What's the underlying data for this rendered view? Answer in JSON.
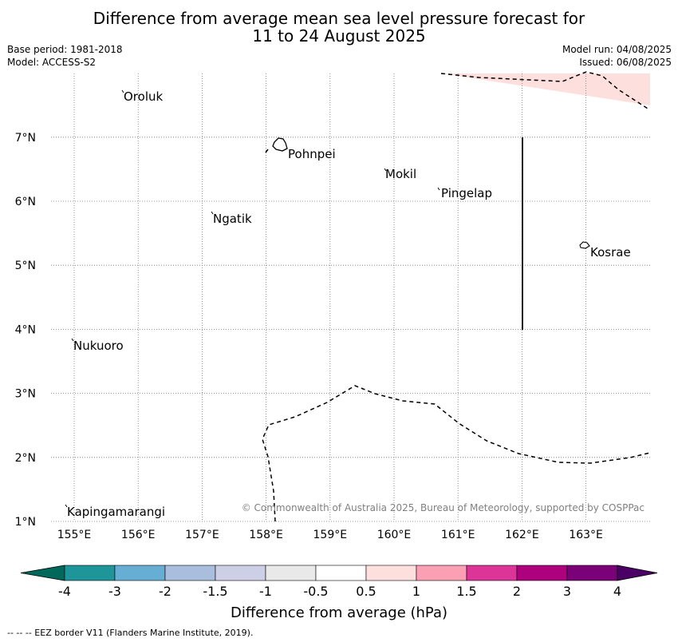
{
  "title_line1": "Difference from average mean sea level pressure forecast for",
  "title_line2": "11 to 24 August 2025",
  "base_period": "Base period: 1981-2018",
  "model": "Model: ACCESS-S2",
  "model_run": "Model run: 04/08/2025",
  "issued": "Issued: 06/08/2025",
  "copyright": "© Commonwealth of Australia 2025, Bureau of Meteorology, supported by COSPPac",
  "footer": "-- -- -- EEZ border V11 (Flanders Marine Institute, 2019).",
  "map": {
    "lon_range": [
      154.4,
      164.0
    ],
    "lat_range": [
      1.0,
      8.0
    ],
    "lon_ticks": [
      "155°E",
      "156°E",
      "157°E",
      "158°E",
      "159°E",
      "160°E",
      "161°E",
      "162°E",
      "163°E"
    ],
    "lat_ticks": [
      "1°N",
      "2°N",
      "3°N",
      "4°N",
      "5°N",
      "6°N",
      "7°N"
    ],
    "places": [
      {
        "name": "Oroluk",
        "lon": 155.7,
        "lat": 7.6
      },
      {
        "name": "Pohnpei",
        "lon": 158.2,
        "lat": 6.9
      },
      {
        "name": "Mokil",
        "lon": 159.8,
        "lat": 6.4
      },
      {
        "name": "Pingelap",
        "lon": 160.7,
        "lat": 6.2
      },
      {
        "name": "Ngatik",
        "lon": 157.1,
        "lat": 5.8
      },
      {
        "name": "Kosrae",
        "lon": 163.0,
        "lat": 5.3
      },
      {
        "name": "Nukuoro",
        "lon": 154.9,
        "lat": 3.8
      },
      {
        "name": "Kapingamarangi",
        "lon": 154.8,
        "lat": 1.2
      }
    ],
    "shaded_region": "0.5 to 1 hPa above average (north-east corner)",
    "shaded_color": "#fde0dd"
  },
  "colorbar": {
    "label": "Difference from average (hPa)",
    "ticks": [
      "-4",
      "-3",
      "-2",
      "-1.5",
      "-1",
      "-0.5",
      "0.5",
      "1",
      "1.5",
      "2",
      "3",
      "4"
    ],
    "under_color": "#00695c",
    "over_color": "#4a0064",
    "colors": [
      "#1d9599",
      "#67aed4",
      "#a9bddc",
      "#cdcfe6",
      "#e9e9e9",
      "#ffffff",
      "#fde0dd",
      "#fba0b4",
      "#dd3497",
      "#ae017e",
      "#7a0177"
    ]
  }
}
